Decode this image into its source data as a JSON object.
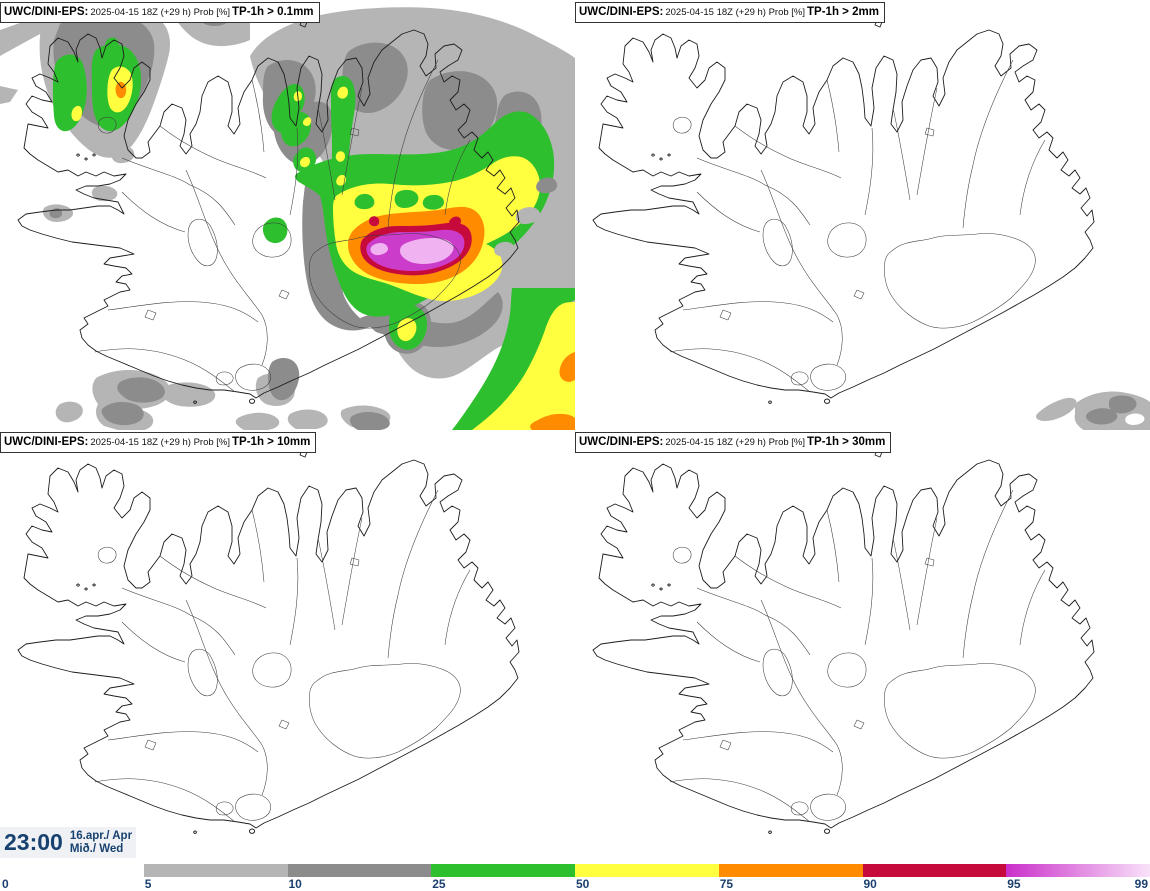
{
  "product": {
    "model_label": "UWC/DINI-EPS:",
    "run_label": "2025-04-15 18Z (+29 h) Prob [%]"
  },
  "panels": [
    {
      "id": "tp-0p1mm",
      "model": "UWC/DINI-EPS:",
      "run": "2025-04-15 18Z (+29 h) Prob [%]",
      "threshold": "TP-1h > 0.1mm"
    },
    {
      "id": "tp-2mm",
      "model": "UWC/DINI-EPS:",
      "run": "2025-04-15 18Z (+29 h) Prob [%]",
      "threshold": "TP-1h > 2mm"
    },
    {
      "id": "tp-10mm",
      "model": "UWC/DINI-EPS:",
      "run": "2025-04-15 18Z (+29 h) Prob [%]",
      "threshold": "TP-1h > 10mm"
    },
    {
      "id": "tp-30mm",
      "model": "UWC/DINI-EPS:",
      "run": "2025-04-15 18Z (+29 h) Prob [%]",
      "threshold": "TP-1h > 30mm"
    }
  ],
  "footer": {
    "time": "23:00",
    "date_line1": "16.apr./ Apr",
    "date_line2": "Mið./ Wed"
  },
  "legend": {
    "ticks": [
      "0",
      "5",
      "10",
      "25",
      "50",
      "75",
      "90",
      "95",
      "99"
    ],
    "segments": [
      {
        "from": "0",
        "to": "5",
        "color": "#ffffff"
      },
      {
        "from": "5",
        "to": "10",
        "color": "#b5b5b5"
      },
      {
        "from": "10",
        "to": "25",
        "color": "#8c8c8c"
      },
      {
        "from": "25",
        "to": "50",
        "color": "#2ebf2e"
      },
      {
        "from": "50",
        "to": "75",
        "color": "#ffff3f"
      },
      {
        "from": "75",
        "to": "90",
        "color": "#ff8b00"
      },
      {
        "from": "90",
        "to": "95",
        "color": "#c70a3c"
      },
      {
        "from": "95",
        "to": "99",
        "color": "#ca2fca",
        "color_end": "#f9e2f9"
      }
    ]
  },
  "palette": {
    "p5": "#b5b5b5",
    "p10": "#8c8c8c",
    "p25": "#2ebf2e",
    "p50": "#ffff3f",
    "p75": "#ff8b00",
    "p90": "#c70a3c",
    "p95": "#cb3ccb",
    "p99": "#f0b2f0"
  }
}
